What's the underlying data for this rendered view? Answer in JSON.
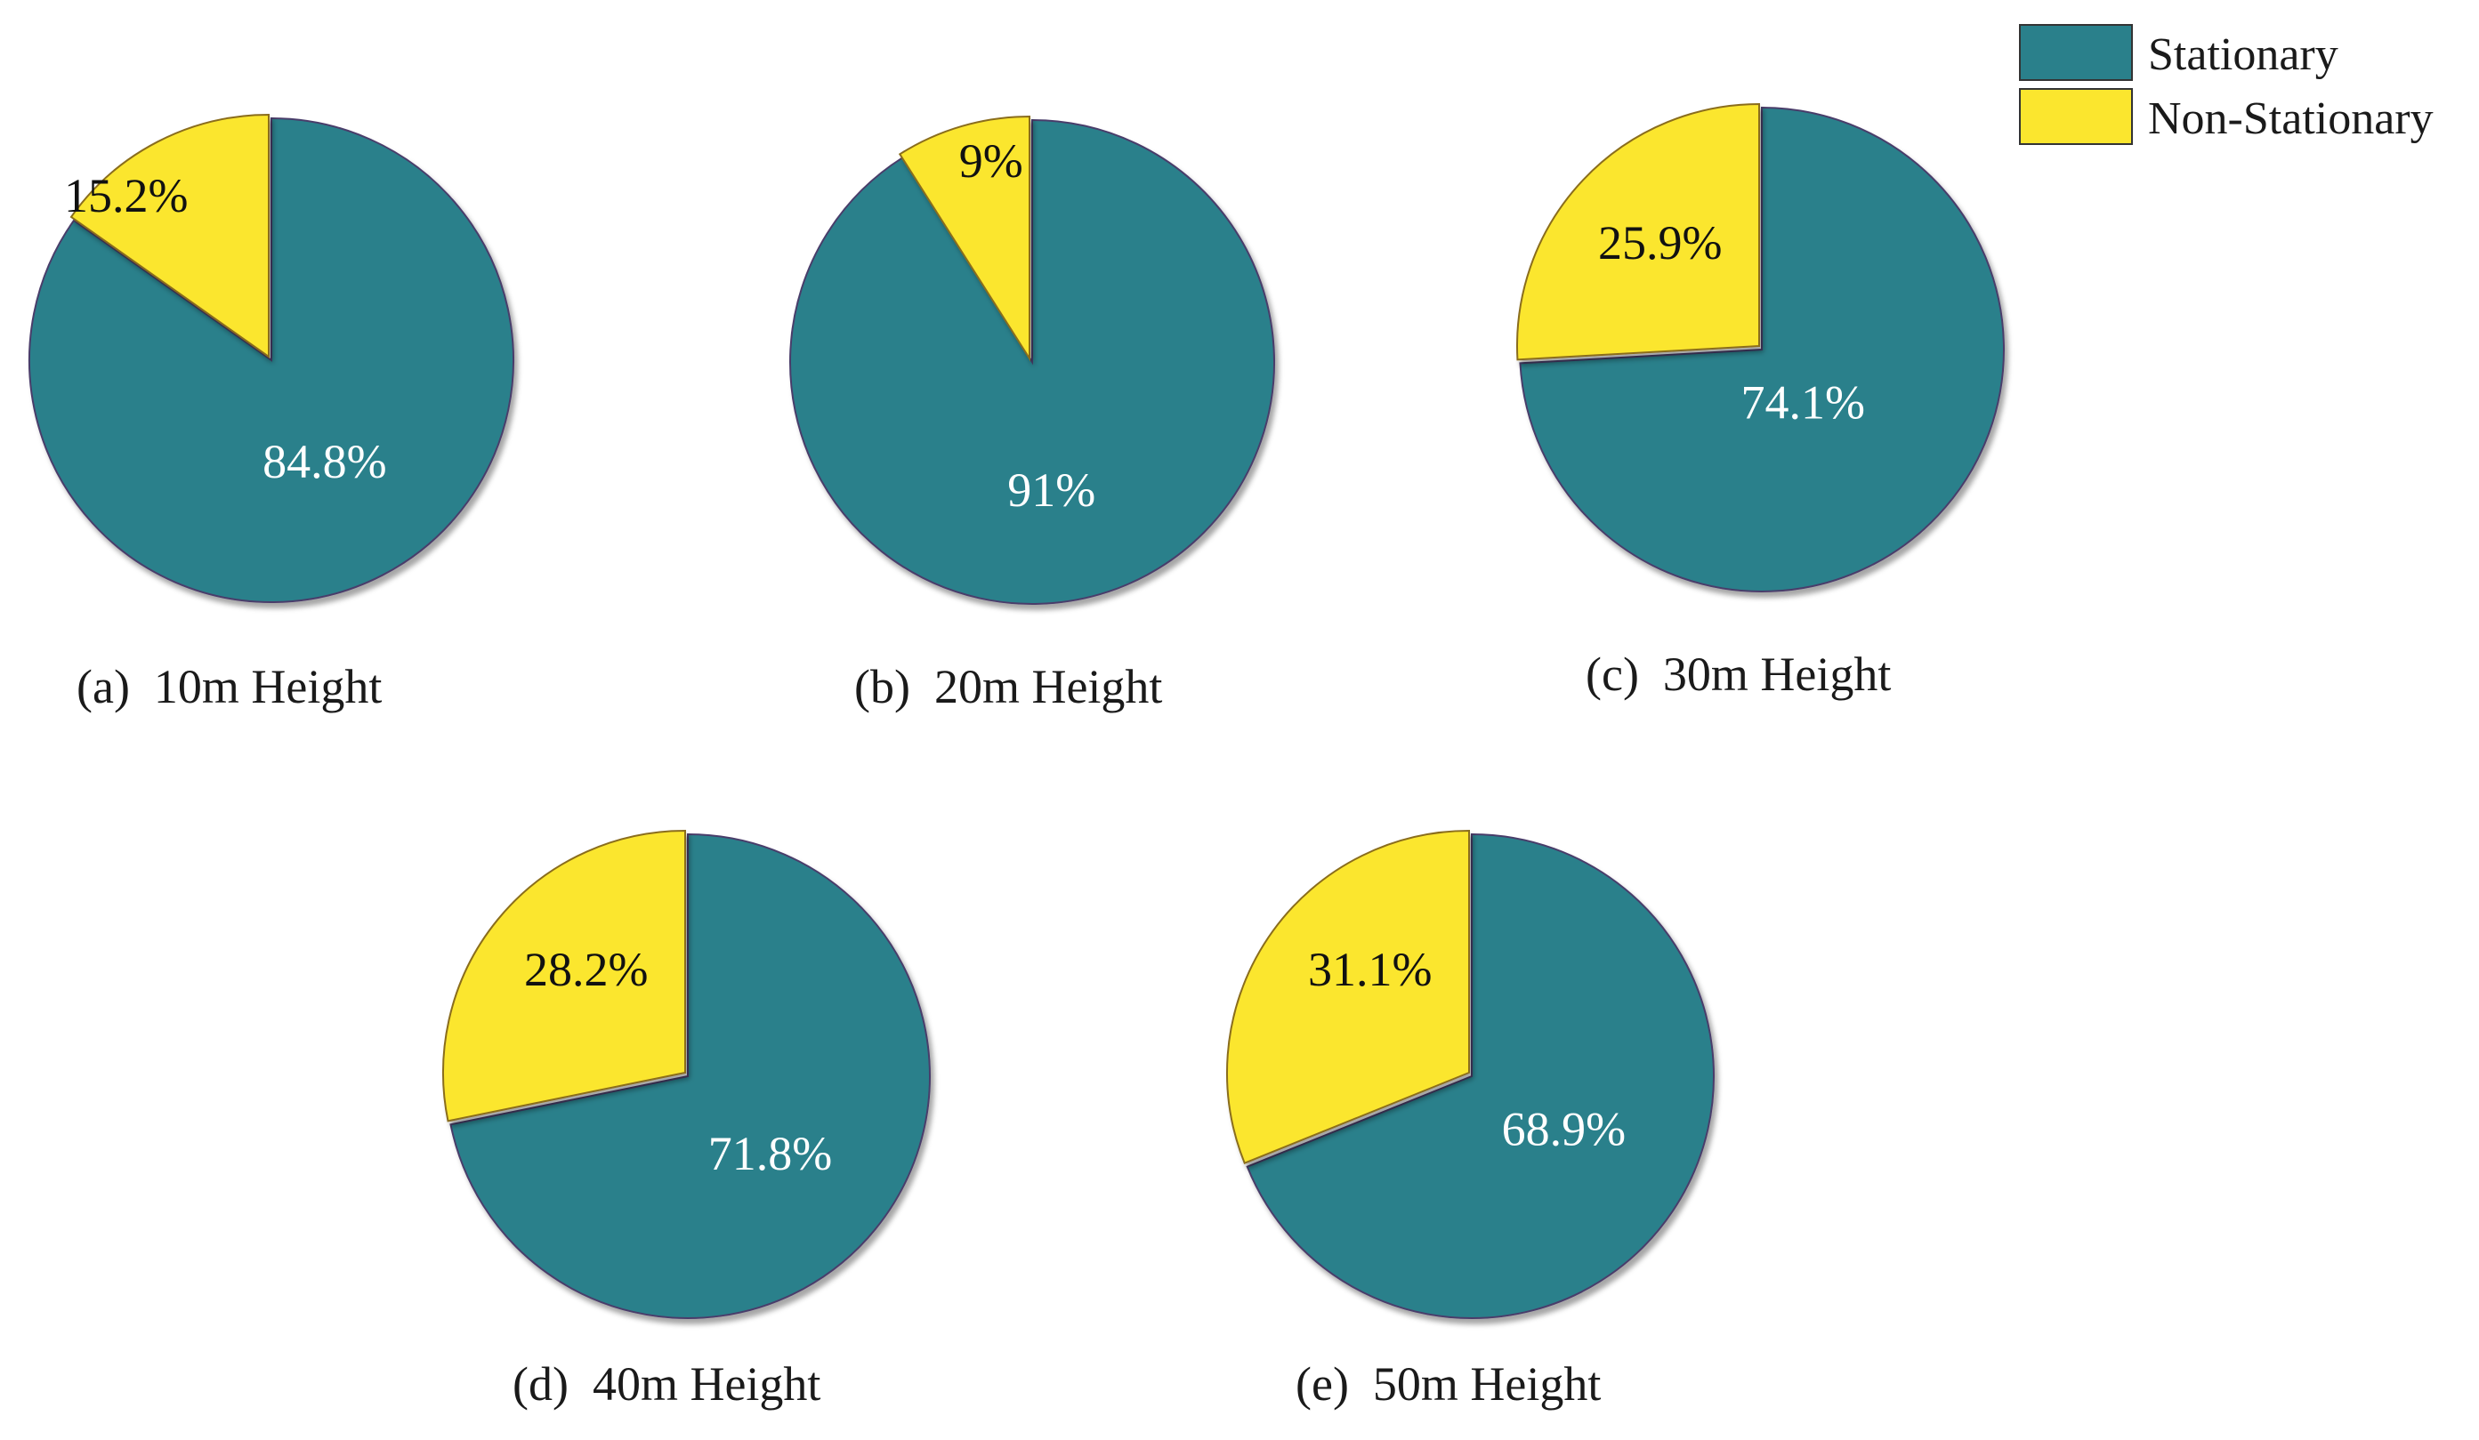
{
  "colors": {
    "stationary": "#2a808b",
    "non_stationary": "#fbe62e",
    "stationary_label": "#ffffff",
    "non_stationary_label": "#111111"
  },
  "legend": {
    "placement": "top-right",
    "items": [
      {
        "label": "Stationary",
        "color": "#2a808b"
      },
      {
        "label": "Non-Stationary",
        "color": "#fbe62e"
      }
    ]
  },
  "chart_data": [
    {
      "type": "pie",
      "caption": "(a)  10m Height",
      "categories": [
        "Stationary",
        "Non-Stationary"
      ],
      "values": [
        84.8,
        15.2
      ],
      "labels": [
        "84.8%",
        "15.2%"
      ]
    },
    {
      "type": "pie",
      "caption": "(b)  20m Height",
      "categories": [
        "Stationary",
        "Non-Stationary"
      ],
      "values": [
        91,
        9
      ],
      "labels": [
        "91%",
        "9%"
      ]
    },
    {
      "type": "pie",
      "caption": "(c)  30m Height",
      "categories": [
        "Stationary",
        "Non-Stationary"
      ],
      "values": [
        74.1,
        25.9
      ],
      "labels": [
        "74.1%",
        "25.9%"
      ]
    },
    {
      "type": "pie",
      "caption": "(d)  40m Height",
      "categories": [
        "Stationary",
        "Non-Stationary"
      ],
      "values": [
        71.8,
        28.2
      ],
      "labels": [
        "71.8%",
        "28.2%"
      ]
    },
    {
      "type": "pie",
      "caption": "(e)  50m Height",
      "categories": [
        "Stationary",
        "Non-Stationary"
      ],
      "values": [
        68.9,
        31.1
      ],
      "labels": [
        "68.9%",
        "31.1%"
      ]
    }
  ]
}
